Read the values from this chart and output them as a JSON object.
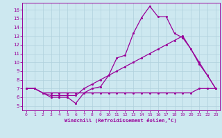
{
  "xlabel": "Windchill (Refroidissement éolien,°C)",
  "background_color": "#cde8f0",
  "line_color": "#990099",
  "grid_color": "#b0d0dc",
  "xlim": [
    -0.5,
    23.5
  ],
  "ylim": [
    4.5,
    16.8
  ],
  "yticks": [
    5,
    6,
    7,
    8,
    9,
    10,
    11,
    12,
    13,
    14,
    15,
    16
  ],
  "xticks": [
    0,
    1,
    2,
    3,
    4,
    5,
    6,
    7,
    8,
    9,
    10,
    11,
    12,
    13,
    14,
    15,
    16,
    17,
    18,
    19,
    20,
    21,
    22,
    23
  ],
  "series1_x": [
    0,
    1,
    2,
    3,
    4,
    5,
    6,
    7,
    8,
    9,
    10,
    11,
    12,
    13,
    14,
    15,
    16,
    17,
    18,
    19,
    20,
    21,
    22,
    23
  ],
  "series1_y": [
    7.0,
    7.0,
    6.5,
    6.0,
    6.0,
    6.0,
    5.3,
    6.5,
    7.0,
    7.2,
    8.5,
    10.5,
    10.8,
    13.3,
    15.1,
    16.4,
    15.2,
    15.2,
    13.3,
    12.8,
    11.5,
    9.8,
    8.5,
    7.0
  ],
  "series2_x": [
    0,
    1,
    2,
    3,
    4,
    5,
    6,
    7,
    8,
    9,
    10,
    11,
    12,
    13,
    14,
    15,
    16,
    17,
    18,
    19,
    20,
    21,
    22,
    23
  ],
  "series2_y": [
    7.0,
    7.0,
    6.5,
    6.2,
    6.2,
    6.2,
    6.2,
    7.0,
    7.5,
    8.0,
    8.5,
    9.0,
    9.5,
    10.0,
    10.5,
    11.0,
    11.5,
    12.0,
    12.5,
    13.0,
    11.5,
    10.0,
    8.5,
    7.0
  ],
  "series3_x": [
    0,
    1,
    2,
    3,
    4,
    5,
    6,
    7,
    8,
    9,
    10,
    11,
    12,
    13,
    14,
    15,
    16,
    17,
    18,
    19,
    20,
    21,
    22,
    23
  ],
  "series3_y": [
    7.0,
    7.0,
    6.5,
    6.5,
    6.5,
    6.5,
    6.5,
    6.5,
    6.5,
    6.5,
    6.5,
    6.5,
    6.5,
    6.5,
    6.5,
    6.5,
    6.5,
    6.5,
    6.5,
    6.5,
    6.5,
    7.0,
    7.0,
    7.0
  ]
}
